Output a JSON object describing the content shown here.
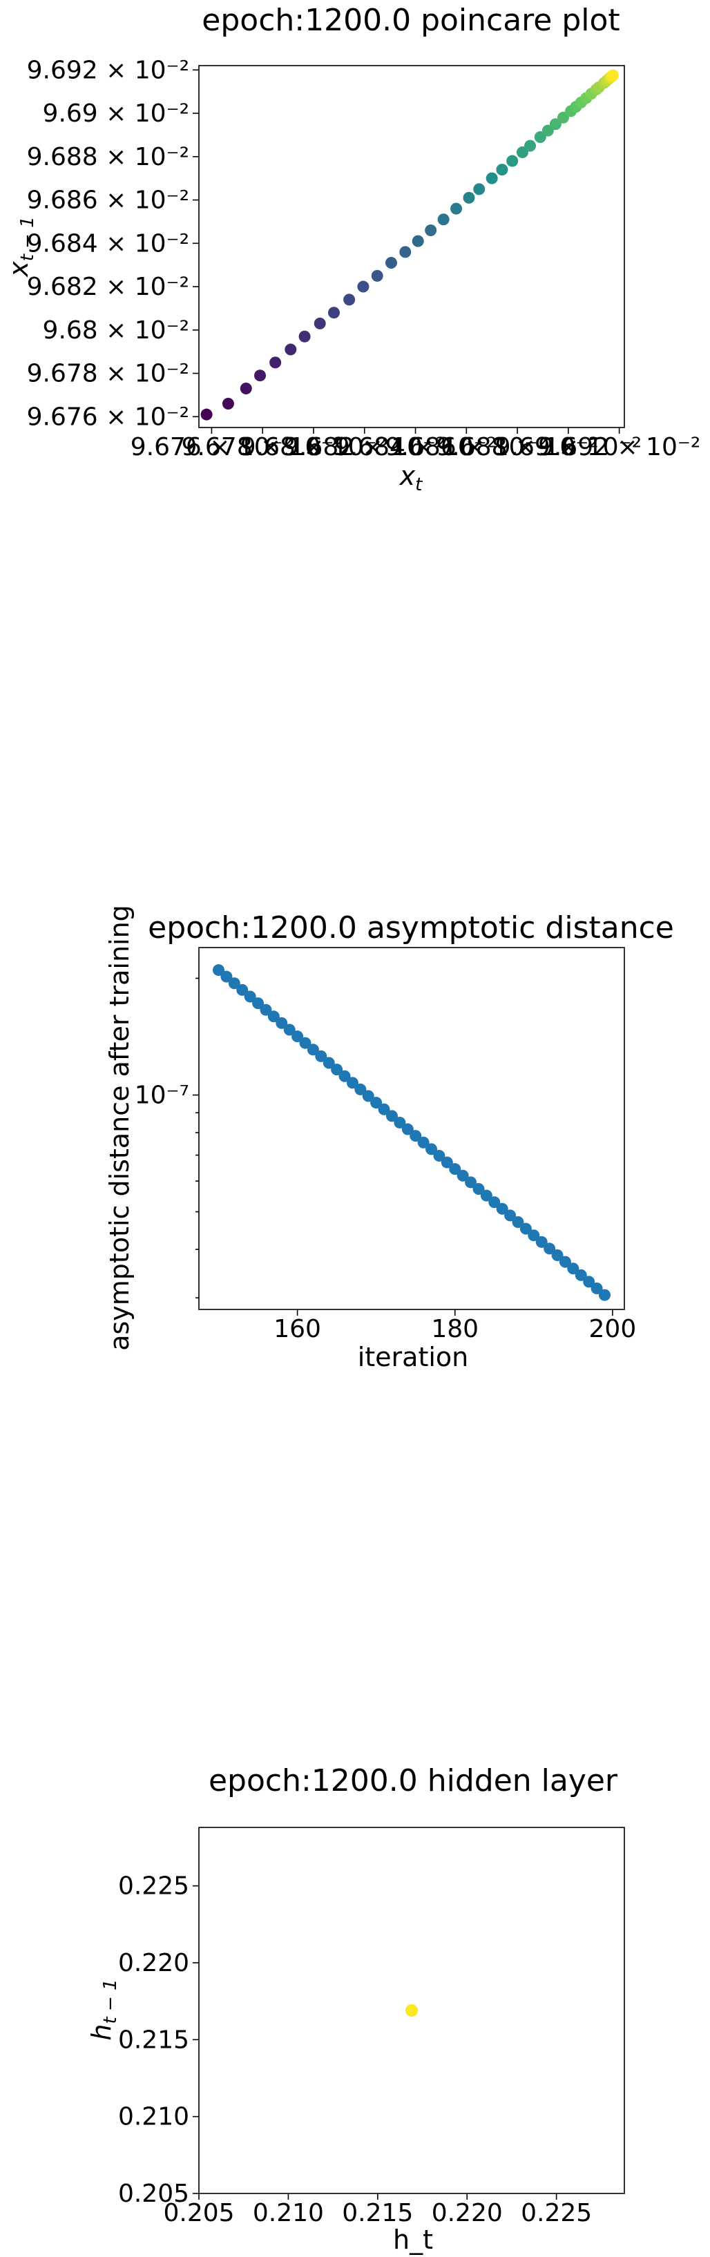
{
  "chart_data": [
    {
      "type": "scatter",
      "title": "epoch:1200.0 poincare plot",
      "xlabel": "x_t",
      "ylabel": "x_t-1",
      "xlim": [
        9.6755,
        9.6922
      ],
      "ylim": [
        9.6755,
        9.6922
      ],
      "x_ticks": [
        "9.676 × 10⁻²",
        "9.678 × 10⁻²",
        "9.68 × 10⁻²",
        "9.682 × 10⁻²",
        "9.684 × 10⁻²",
        "9.686 × 10⁻²",
        "9.688 × 10⁻²",
        "9.69 × 10⁻²",
        "9.692 × 10⁻²"
      ],
      "y_ticks": [
        "9.676 × 10⁻²",
        "9.678 × 10⁻²",
        "9.68 × 10⁻²",
        "9.682 × 10⁻²",
        "9.684 × 10⁻²",
        "9.686 × 10⁻²",
        "9.688 × 10⁻²",
        "9.69 × 10⁻²",
        "9.692 × 10⁻²"
      ],
      "x_tick_values": [
        9.676,
        9.678,
        9.68,
        9.682,
        9.684,
        9.686,
        9.688,
        9.69,
        9.692
      ],
      "y_tick_values": [
        9.676,
        9.678,
        9.68,
        9.682,
        9.684,
        9.686,
        9.688,
        9.69,
        9.692
      ],
      "value_scale": "× 10⁻²",
      "colormap": "viridis",
      "grid": false,
      "points": {
        "x": [
          9.6758,
          9.67665,
          9.67735,
          9.6779,
          9.6785,
          9.6791,
          9.67965,
          9.68025,
          9.6808,
          9.6814,
          9.68195,
          9.6825,
          9.68305,
          9.6836,
          9.6841,
          9.6846,
          9.6851,
          9.6856,
          9.6861,
          9.6865,
          9.687,
          9.6874,
          9.6878,
          9.6882,
          9.6885,
          9.6889,
          9.6892,
          9.6895,
          9.6898,
          9.6901,
          9.6903,
          9.6905,
          9.6907,
          9.6909,
          9.6911,
          9.6912,
          9.6914,
          9.6915,
          9.6916,
          9.69165,
          9.6917,
          9.69175
        ],
        "y": [
          9.6761,
          9.6766,
          9.6773,
          9.6779,
          9.6785,
          9.6791,
          9.6797,
          9.6803,
          9.6808,
          9.6814,
          9.682,
          9.6825,
          9.6831,
          9.6836,
          9.6841,
          9.6846,
          9.6851,
          9.6856,
          9.6861,
          9.6865,
          9.687,
          9.6874,
          9.6878,
          9.6882,
          9.6885,
          9.6889,
          9.6892,
          9.6895,
          9.6898,
          9.6901,
          9.6903,
          9.6905,
          9.6907,
          9.6909,
          9.6911,
          9.6912,
          9.6914,
          9.6915,
          9.6916,
          9.69165,
          9.6917,
          9.69175
        ]
      }
    },
    {
      "type": "scatter",
      "title": "epoch:1200.0 asymptotic distance",
      "xlabel": "iteration",
      "ylabel": "asymptotic distance after training",
      "xlim": [
        147.5,
        201.5
      ],
      "yscale": "log",
      "ylim": [
        2.8e-08,
        2.4e-07
      ],
      "x_ticks": [
        160,
        180,
        200
      ],
      "y_ticks": [
        "10⁻⁷"
      ],
      "y_tick_values": [
        1e-07
      ],
      "y_minor_tick_values": [
        3e-08,
        4e-08,
        5e-08,
        6e-08,
        7e-08,
        8e-08,
        9e-08,
        2e-07
      ],
      "color": "#1f77b4",
      "grid": false,
      "points": {
        "x_start": 150,
        "x_end": 199,
        "y_start": 2.1e-07,
        "y_end": 3.05e-08
      }
    },
    {
      "type": "scatter",
      "title": "epoch:1200.0 hidden layer",
      "xlabel": "h_t",
      "ylabel": "h_t-1",
      "xlim": [
        0.205,
        0.2288
      ],
      "ylim": [
        0.205,
        0.2288
      ],
      "x_ticks": [
        "0.205",
        "0.210",
        "0.215",
        "0.220",
        "0.225"
      ],
      "y_ticks": [
        "0.205",
        "0.210",
        "0.215",
        "0.220",
        "0.225"
      ],
      "x_tick_values": [
        0.205,
        0.21,
        0.215,
        0.22,
        0.225
      ],
      "y_tick_values": [
        0.205,
        0.21,
        0.215,
        0.22,
        0.225
      ],
      "color": "#fde725",
      "grid": false,
      "points": {
        "x": [
          0.2169
        ],
        "y": [
          0.2169
        ]
      }
    }
  ]
}
